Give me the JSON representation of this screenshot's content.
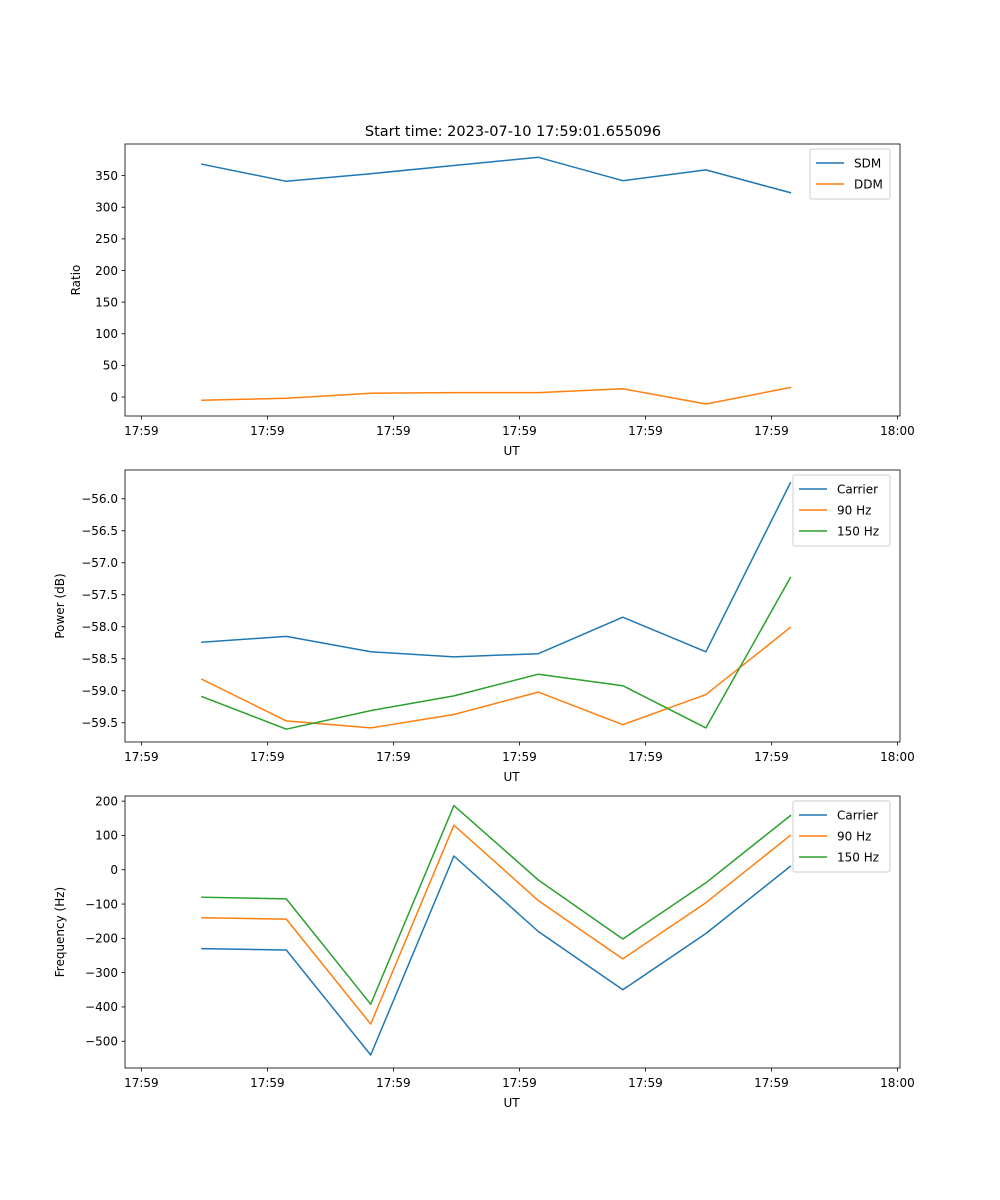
{
  "figure": {
    "suptitle": "Start time: 2023-07-10 17:59:01.655096"
  },
  "chart_data": [
    {
      "type": "line",
      "title": "",
      "xlabel": "UT",
      "ylabel": "Ratio",
      "x_ticks": [
        0,
        1,
        2,
        3,
        4,
        5,
        6
      ],
      "x_tick_labels": [
        "17:59",
        "17:59",
        "17:59",
        "17:59",
        "17:59",
        "17:59",
        "18:00"
      ],
      "xlim": [
        -0.13,
        6.02
      ],
      "x": [
        0.48,
        1.15,
        1.82,
        2.48,
        3.15,
        3.82,
        4.48,
        5.15
      ],
      "ylim": [
        -30,
        400
      ],
      "y_ticks": [
        0,
        50,
        100,
        150,
        200,
        250,
        300,
        350
      ],
      "y_tick_labels": [
        "0",
        "50",
        "100",
        "150",
        "200",
        "250",
        "300",
        "350"
      ],
      "grid": false,
      "legend": "top-right",
      "series": [
        {
          "name": "SDM",
          "color": "#1f77b4",
          "values": [
            368,
            341,
            353,
            366,
            379,
            342,
            359,
            323
          ]
        },
        {
          "name": "DDM",
          "color": "#ff7f0e",
          "values": [
            -5,
            -2,
            6,
            7,
            7,
            13,
            -11,
            15
          ]
        }
      ]
    },
    {
      "type": "line",
      "title": "",
      "xlabel": "UT",
      "ylabel": "Power (dB)",
      "x_ticks": [
        0,
        1,
        2,
        3,
        4,
        5,
        6
      ],
      "x_tick_labels": [
        "17:59",
        "17:59",
        "17:59",
        "17:59",
        "17:59",
        "17:59",
        "18:00"
      ],
      "xlim": [
        -0.13,
        6.02
      ],
      "x": [
        0.48,
        1.15,
        1.82,
        2.48,
        3.15,
        3.82,
        4.48,
        5.15
      ],
      "ylim": [
        -59.8,
        -55.55
      ],
      "y_ticks": [
        -59.5,
        -59.0,
        -58.5,
        -58.0,
        -57.5,
        -57.0,
        -56.5,
        -56.0
      ],
      "y_tick_labels": [
        "−59.5",
        "−59.0",
        "−58.5",
        "−58.0",
        "−57.5",
        "−57.0",
        "−56.5",
        "−56.0"
      ],
      "grid": false,
      "legend": "top-right",
      "series": [
        {
          "name": "Carrier",
          "color": "#1f77b4",
          "values": [
            -58.24,
            -58.15,
            -58.39,
            -58.47,
            -58.42,
            -57.85,
            -58.39,
            -55.75
          ]
        },
        {
          "name": "90 Hz",
          "color": "#ff7f0e",
          "values": [
            -58.82,
            -59.47,
            -59.58,
            -59.37,
            -59.02,
            -59.53,
            -59.06,
            -58.01
          ]
        },
        {
          "name": "150 Hz",
          "color": "#2ca02c",
          "values": [
            -59.09,
            -59.6,
            -59.31,
            -59.08,
            -58.74,
            -58.92,
            -59.58,
            -57.23
          ]
        }
      ]
    },
    {
      "type": "line",
      "title": "",
      "xlabel": "UT",
      "ylabel": "Frequency (Hz)",
      "x_ticks": [
        0,
        1,
        2,
        3,
        4,
        5,
        6
      ],
      "x_tick_labels": [
        "17:59",
        "17:59",
        "17:59",
        "17:59",
        "17:59",
        "17:59",
        "18:00"
      ],
      "xlim": [
        -0.13,
        6.02
      ],
      "x": [
        0.48,
        1.15,
        1.82,
        2.48,
        3.15,
        3.82,
        4.48,
        5.15
      ],
      "ylim": [
        -578,
        215
      ],
      "y_ticks": [
        -500,
        -400,
        -300,
        -200,
        -100,
        0,
        100,
        200
      ],
      "y_tick_labels": [
        "−500",
        "−400",
        "−300",
        "−200",
        "−100",
        "0",
        "100",
        "200"
      ],
      "grid": false,
      "legend": "top-right",
      "series": [
        {
          "name": "Carrier",
          "color": "#1f77b4",
          "values": [
            -230,
            -234,
            -540,
            40,
            -180,
            -350,
            -186,
            10
          ]
        },
        {
          "name": "90 Hz",
          "color": "#ff7f0e",
          "values": [
            -140,
            -144,
            -450,
            130,
            -90,
            -260,
            -96,
            100
          ]
        },
        {
          "name": "150 Hz",
          "color": "#2ca02c",
          "values": [
            -80,
            -85,
            -392,
            187,
            -30,
            -202,
            -38,
            158
          ]
        }
      ]
    }
  ]
}
